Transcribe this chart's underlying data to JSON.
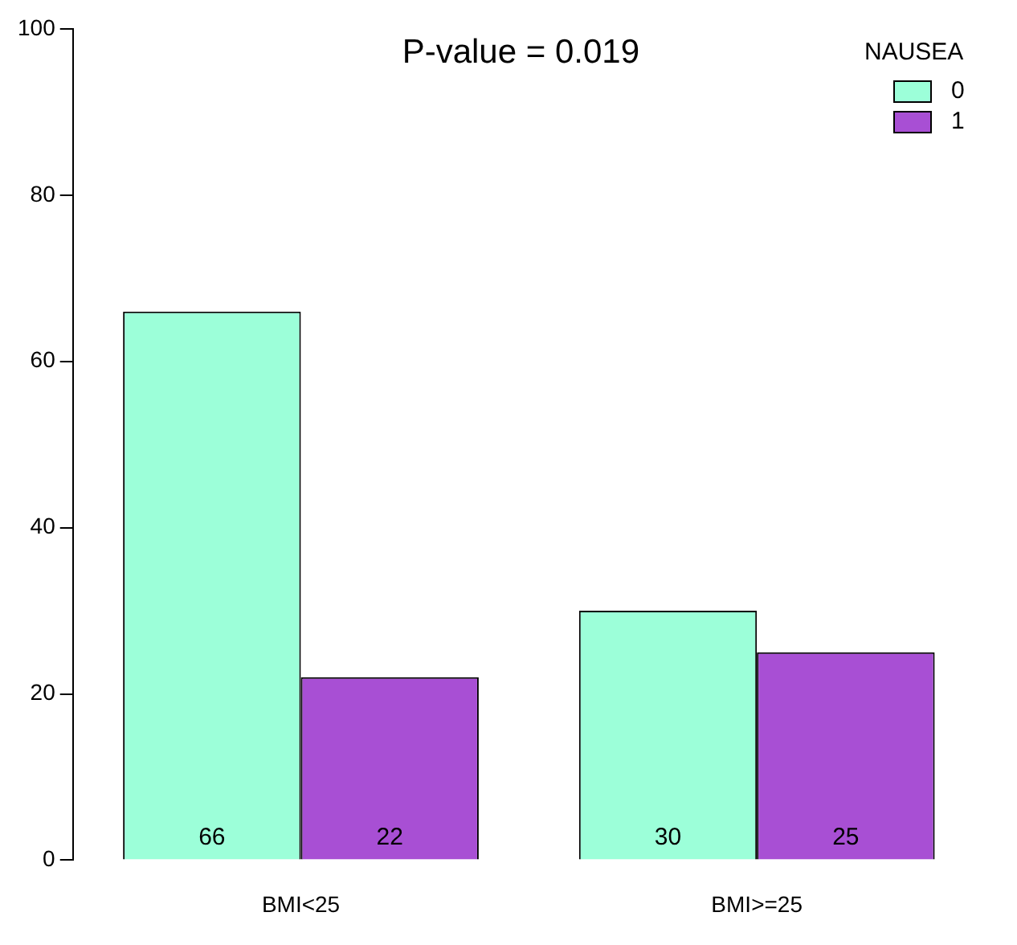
{
  "chart_data": {
    "type": "bar",
    "categories": [
      "BMI<25",
      "BMI>=25"
    ],
    "series": [
      {
        "name": "0",
        "color": "#9cffd9",
        "values": [
          66,
          30
        ]
      },
      {
        "name": "1",
        "color": "#a84fd4",
        "values": [
          22,
          25
        ]
      }
    ],
    "ylim": [
      0,
      100
    ],
    "yticks": [
      0,
      20,
      40,
      60,
      80,
      100
    ],
    "grid": false,
    "legend": "top right",
    "legend_title": "NAUSEA",
    "data_labels": true,
    "annotations": [
      "P-value = 0.019"
    ]
  }
}
